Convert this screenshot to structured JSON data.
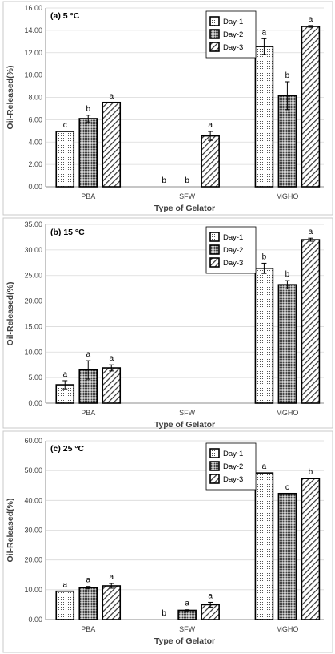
{
  "chart_data": [
    {
      "type": "bar",
      "title": "(a) 5 °C",
      "xlabel": "Type of Gelator",
      "ylabel": "Oil-Released(%)",
      "categories": [
        "PBA",
        "SFW",
        "MGHO"
      ],
      "ylim": [
        0,
        16
      ],
      "yticks": [
        "0.00",
        "2.00",
        "4.00",
        "6.00",
        "8.00",
        "10.00",
        "12.00",
        "14.00",
        "16.00"
      ],
      "grid": true,
      "legend_position": "top-right",
      "series": [
        {
          "name": "Day-1",
          "values": [
            4.95,
            0,
            12.55
          ],
          "errors": [
            0,
            0,
            0.7
          ],
          "letters": [
            "c",
            "b",
            "a"
          ]
        },
        {
          "name": "Day-2",
          "values": [
            6.1,
            0,
            8.15
          ],
          "errors": [
            0.3,
            0,
            1.25
          ],
          "letters": [
            "b",
            "b",
            "b"
          ]
        },
        {
          "name": "Day-3",
          "values": [
            7.55,
            4.55,
            14.35
          ],
          "errors": [
            0,
            0.4,
            0.08
          ],
          "letters": [
            "a",
            "a",
            "a"
          ]
        }
      ]
    },
    {
      "type": "bar",
      "title": "(b) 15 °C",
      "xlabel": "Type of Gelator",
      "ylabel": "Oil-Released(%)",
      "categories": [
        "PBA",
        "SFW",
        "MGHO"
      ],
      "ylim": [
        0,
        35
      ],
      "yticks": [
        "0.00",
        "5.00",
        "10.00",
        "15.00",
        "20.00",
        "25.00",
        "30.00",
        "35.00"
      ],
      "grid": true,
      "legend_position": "top-right",
      "series": [
        {
          "name": "Day-1",
          "values": [
            3.6,
            0,
            26.4
          ],
          "errors": [
            0.8,
            0,
            1.0
          ],
          "letters": [
            "a",
            "",
            "b"
          ]
        },
        {
          "name": "Day-2",
          "values": [
            6.5,
            0,
            23.2
          ],
          "errors": [
            1.8,
            0,
            0.8
          ],
          "letters": [
            "a",
            "",
            "b"
          ]
        },
        {
          "name": "Day-3",
          "values": [
            6.9,
            0,
            32.0
          ],
          "errors": [
            0.6,
            0,
            0.3
          ],
          "letters": [
            "a",
            "",
            "a"
          ]
        }
      ]
    },
    {
      "type": "bar",
      "title": "(c) 25 °C",
      "xlabel": "Type of Gelator",
      "ylabel": "Oil-Released(%)",
      "categories": [
        "PBA",
        "SFW",
        "MGHO"
      ],
      "ylim": [
        0,
        60
      ],
      "yticks": [
        "0.00",
        "10.00",
        "20.00",
        "30.00",
        "40.00",
        "50.00",
        "60.00"
      ],
      "grid": true,
      "legend_position": "top-right",
      "series": [
        {
          "name": "Day-1",
          "values": [
            9.5,
            0,
            49.2
          ],
          "errors": [
            0,
            0,
            0
          ],
          "letters": [
            "a",
            "b",
            "a"
          ]
        },
        {
          "name": "Day-2",
          "values": [
            10.7,
            3.1,
            42.3
          ],
          "errors": [
            0.4,
            0.2,
            0
          ],
          "letters": [
            "a",
            "a",
            "c"
          ]
        },
        {
          "name": "Day-3",
          "values": [
            11.3,
            5.0,
            47.3
          ],
          "errors": [
            0.8,
            0.8,
            0
          ],
          "letters": [
            "a",
            "a",
            "b"
          ]
        }
      ]
    }
  ]
}
